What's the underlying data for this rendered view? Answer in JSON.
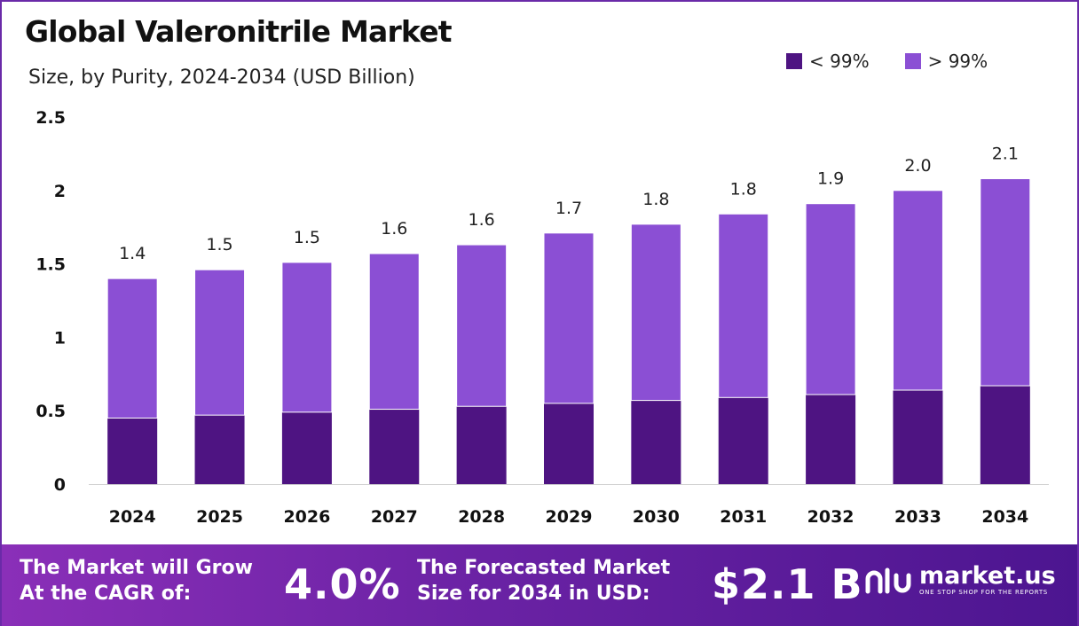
{
  "header": {
    "title": "Global Valeronitrile Market",
    "subtitle": "Size, by Purity, 2024-2034 (USD Billion)"
  },
  "colors": {
    "below_99": "#4e1482",
    "above_99": "#8b4fd4",
    "footer_start": "#8a2fb8",
    "footer_end": "#4c1590"
  },
  "chart_data": {
    "type": "bar",
    "stacked": true,
    "categories": [
      "2024",
      "2025",
      "2026",
      "2027",
      "2028",
      "2029",
      "2030",
      "2031",
      "2032",
      "2033",
      "2034"
    ],
    "series": [
      {
        "name": "< 99%",
        "values": [
          0.45,
          0.47,
          0.49,
          0.51,
          0.53,
          0.55,
          0.57,
          0.59,
          0.61,
          0.64,
          0.67
        ]
      },
      {
        "name": "> 99%",
        "values": [
          0.95,
          0.99,
          1.02,
          1.06,
          1.1,
          1.16,
          1.2,
          1.25,
          1.3,
          1.36,
          1.41
        ]
      }
    ],
    "total_labels": [
      "1.4",
      "1.5",
      "1.5",
      "1.6",
      "1.6",
      "1.7",
      "1.8",
      "1.8",
      "1.9",
      "2.0",
      "2.1"
    ],
    "yticks": [
      "0",
      "0.5",
      "1",
      "1.5",
      "2",
      "2.5"
    ],
    "ylim": [
      0,
      2.5
    ],
    "grid": false,
    "legend_position": "top-right"
  },
  "footer": {
    "cagr_label": "The Market will Grow\nAt the CAGR of:",
    "cagr_value": "4.0%",
    "forecast_label": "The Forecasted Market\nSize for 2034 in USD:",
    "forecast_value": "$2.1 B",
    "brand_name": "market.us",
    "brand_tagline": "ONE STOP SHOP FOR THE REPORTS"
  }
}
